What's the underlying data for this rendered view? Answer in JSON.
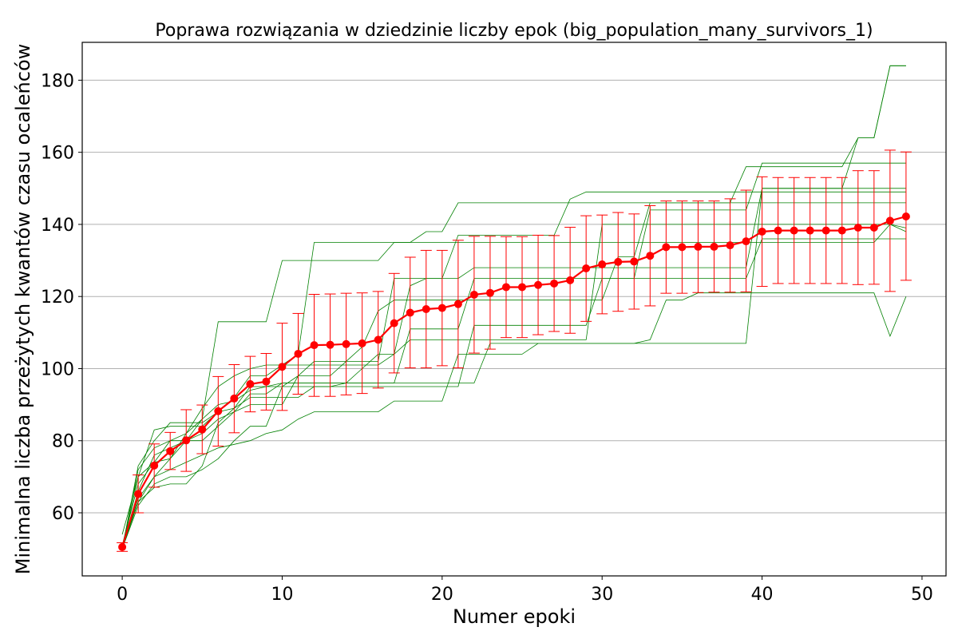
{
  "chart_data": {
    "type": "line",
    "title": "Poprawa rozwiązania w dziedzinie liczby epok (big_population_many_survivors_1)",
    "xlabel": "Numer epoki",
    "ylabel": "Minimalna liczba przeżytych kwantów czasu ocaleńców",
    "xlim": [
      -2.5,
      51.5
    ],
    "ylim": [
      42.5,
      190.5
    ],
    "xticks": [
      0,
      10,
      20,
      30,
      40,
      50
    ],
    "yticks": [
      60,
      80,
      100,
      120,
      140,
      160,
      180
    ],
    "grid": "y",
    "colors": {
      "mean": "#ff0000",
      "runs": "#008000",
      "grid": "#b0b0b0"
    },
    "x": [
      0,
      1,
      2,
      3,
      4,
      5,
      6,
      7,
      8,
      9,
      10,
      11,
      12,
      13,
      14,
      15,
      16,
      17,
      18,
      19,
      20,
      21,
      22,
      23,
      24,
      25,
      26,
      27,
      28,
      29,
      30,
      31,
      32,
      33,
      34,
      35,
      36,
      37,
      38,
      39,
      40,
      41,
      42,
      43,
      44,
      45,
      46,
      47,
      48,
      49
    ],
    "mean": [
      50.5,
      65.2,
      73.1,
      77.1,
      80.1,
      83.1,
      88.2,
      91.7,
      95.7,
      96.4,
      100.5,
      104.1,
      106.5,
      106.6,
      106.8,
      107.0,
      108.0,
      112.6,
      115.5,
      116.5,
      116.8,
      117.9,
      120.5,
      121.0,
      122.6,
      122.6,
      123.2,
      123.6,
      124.5,
      127.8,
      128.9,
      129.6,
      129.7,
      131.3,
      133.7,
      133.7,
      133.8,
      133.8,
      134.2,
      135.3,
      138.0,
      138.3,
      138.3,
      138.3,
      138.3,
      138.3,
      139.1,
      139.1,
      141.0,
      142.2
    ],
    "err_low": [
      49.3,
      60.0,
      67.1,
      72.0,
      71.5,
      76.4,
      78.5,
      82.2,
      88.0,
      88.5,
      88.4,
      92.9,
      92.3,
      92.3,
      92.7,
      93.1,
      94.6,
      98.8,
      100.2,
      100.2,
      100.8,
      100.2,
      104.3,
      105.4,
      108.6,
      108.6,
      109.4,
      110.3,
      109.8,
      113.1,
      115.2,
      115.9,
      116.5,
      117.4,
      120.9,
      120.9,
      121.1,
      121.2,
      121.2,
      121.3,
      122.8,
      123.6,
      123.6,
      123.6,
      123.6,
      123.6,
      123.3,
      123.4,
      121.4,
      124.5
    ],
    "err_high": [
      51.7,
      70.5,
      79.1,
      82.3,
      88.6,
      89.9,
      97.8,
      101.1,
      103.4,
      104.2,
      112.6,
      115.3,
      120.6,
      120.7,
      120.9,
      121.0,
      121.4,
      126.4,
      130.9,
      132.8,
      132.8,
      135.6,
      136.7,
      136.7,
      136.6,
      136.6,
      137.0,
      136.9,
      139.2,
      142.4,
      142.6,
      143.3,
      142.9,
      145.2,
      146.5,
      146.5,
      146.5,
      146.5,
      147.1,
      149.5,
      153.2,
      153.0,
      153.0,
      153.0,
      153.0,
      153.0,
      154.9,
      154.9,
      160.6,
      160.1
    ],
    "runs": [
      {
        "values": [
          50,
          70,
          83,
          84,
          84,
          84,
          88,
          92,
          98,
          98,
          101,
          101,
          101,
          101,
          101,
          101,
          101,
          104,
          123,
          125,
          125,
          125,
          128,
          128,
          128,
          128,
          128,
          128,
          128,
          128,
          128,
          128,
          128,
          128,
          128,
          128,
          128,
          128,
          128,
          128,
          150,
          150,
          150,
          150,
          150,
          150,
          150,
          150,
          150,
          150
        ]
      },
      {
        "values": [
          50,
          72,
          78,
          80,
          82,
          86,
          90,
          91,
          94,
          95,
          96,
          96,
          96,
          96,
          96,
          96,
          96,
          96,
          111,
          111,
          111,
          111,
          125,
          125,
          125,
          125,
          125,
          125,
          125,
          125,
          125,
          125,
          125,
          125,
          125,
          125,
          125,
          125,
          125,
          125,
          136,
          136,
          136,
          136,
          136,
          136,
          136,
          136,
          136,
          136
        ]
      },
      {
        "values": [
          50,
          73,
          80,
          85,
          85,
          85,
          88,
          89,
          92,
          92,
          92,
          92,
          95,
          95,
          95,
          95,
          95,
          95,
          95,
          95,
          95,
          95,
          112,
          112,
          112,
          112,
          112,
          112,
          112,
          112,
          125,
          125,
          125,
          144,
          144,
          144,
          144,
          144,
          144,
          144,
          157,
          157,
          157,
          157,
          157,
          157,
          157,
          157,
          157,
          157
        ]
      },
      {
        "values": [
          51,
          68,
          74,
          80,
          80,
          82,
          86,
          88,
          93,
          93,
          96,
          96,
          96,
          96,
          96,
          96,
          96,
          96,
          96,
          96,
          96,
          96,
          96,
          107,
          107,
          107,
          107,
          107,
          107,
          107,
          107,
          107,
          107,
          107,
          107,
          107,
          107,
          107,
          107,
          107,
          150,
          150,
          150,
          150,
          150,
          150,
          164,
          164,
          184,
          184
        ]
      },
      {
        "values": [
          54,
          70,
          74,
          75,
          80,
          80,
          84,
          88,
          90,
          90,
          90,
          98,
          98,
          98,
          102,
          106,
          116,
          119,
          119,
          119,
          119,
          119,
          119,
          119,
          119,
          119,
          119,
          119,
          119,
          119,
          119,
          131,
          131,
          146,
          146,
          146,
          146,
          146,
          146,
          156,
          156,
          156,
          156,
          156,
          156,
          156,
          164,
          164,
          184,
          184
        ]
      },
      {
        "values": [
          50,
          62,
          68,
          70,
          70,
          72,
          75,
          80,
          84,
          84,
          95,
          95,
          95,
          95,
          96,
          100,
          104,
          104,
          108,
          108,
          108,
          108,
          108,
          108,
          108,
          108,
          108,
          108,
          108,
          108,
          140,
          140,
          140,
          140,
          140,
          140,
          140,
          140,
          140,
          140,
          140,
          140,
          140,
          140,
          140,
          140,
          140,
          140,
          140,
          139
        ]
      },
      {
        "values": [
          50,
          64,
          70,
          72,
          74,
          76,
          78,
          79,
          80,
          82,
          83,
          86,
          88,
          88,
          88,
          88,
          88,
          91,
          91,
          91,
          91,
          104,
          104,
          104,
          104,
          104,
          107,
          107,
          107,
          107,
          107,
          107,
          107,
          108,
          119,
          119,
          121,
          121,
          121,
          121,
          121,
          121,
          121,
          121,
          121,
          121,
          121,
          121,
          109,
          120
        ]
      },
      {
        "values": [
          50,
          63,
          67,
          68,
          68,
          73,
          85,
          89,
          95,
          95,
          95,
          98,
          102,
          102,
          102,
          102,
          102,
          125,
          125,
          125,
          125,
          137,
          137,
          137,
          137,
          137,
          137,
          137,
          147,
          149,
          149,
          149,
          149,
          149,
          149,
          149,
          149,
          149,
          149,
          149,
          149,
          149,
          149,
          149,
          149,
          149,
          149,
          149,
          149,
          149
        ]
      },
      {
        "values": [
          50,
          66,
          76,
          78,
          80,
          86,
          113,
          113,
          113,
          113,
          130,
          130,
          130,
          130,
          130,
          130,
          130,
          135,
          135,
          135,
          135,
          135,
          135,
          135,
          135,
          135,
          135,
          135,
          135,
          135,
          135,
          135,
          135,
          135,
          135,
          135,
          135,
          135,
          135,
          135,
          135,
          135,
          135,
          135,
          135,
          135,
          135,
          135,
          140,
          138
        ]
      },
      {
        "values": [
          51,
          63,
          70,
          75,
          82,
          89,
          95,
          98,
          100,
          101,
          101,
          104,
          135,
          135,
          135,
          135,
          135,
          135,
          135,
          138,
          138,
          146,
          146,
          146,
          146,
          146,
          146,
          146,
          146,
          146,
          146,
          146,
          146,
          146,
          146,
          146,
          146,
          146,
          146,
          146,
          146,
          146,
          146,
          146,
          146,
          146,
          146,
          146,
          146,
          146
        ]
      }
    ]
  }
}
